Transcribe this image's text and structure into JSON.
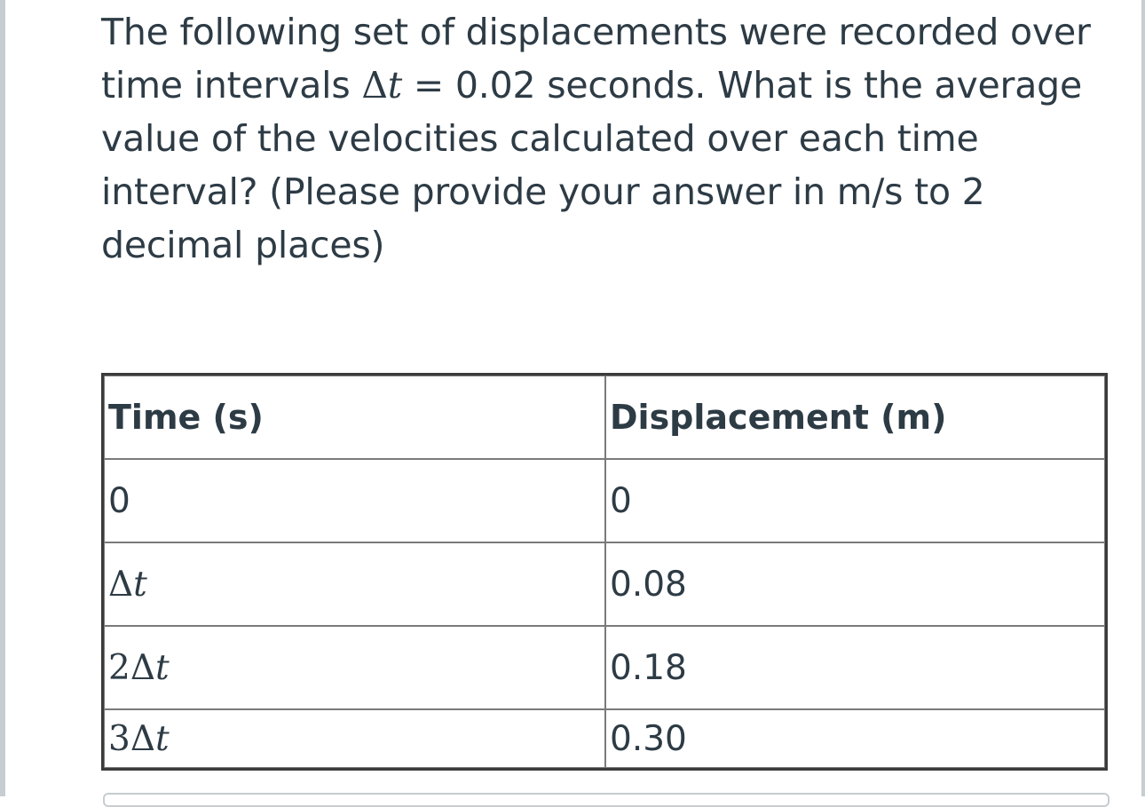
{
  "question": {
    "part1": "The following set of displacements were recorded over time intervals ",
    "math_delta": "Δ",
    "math_t": "t",
    "math_eq": " = ",
    "part2": "0.02 seconds. What is the average value of the velocities calculated over each time interval? (Please provide your answer in m/s to 2 decimal places)"
  },
  "table": {
    "headers": [
      "Time (s)",
      "Displacement (m)"
    ],
    "rows": [
      {
        "time_coeff": "",
        "time_delta": "",
        "time_t": "",
        "time_plain": "0",
        "displacement": "0"
      },
      {
        "time_coeff": "",
        "time_delta": "Δ",
        "time_t": "t",
        "time_plain": "",
        "displacement": "0.08"
      },
      {
        "time_coeff": "2",
        "time_delta": "Δ",
        "time_t": "t",
        "time_plain": "",
        "displacement": "0.18"
      },
      {
        "time_coeff": "3",
        "time_delta": "Δ",
        "time_t": "t",
        "time_plain": "",
        "displacement": "0.30"
      }
    ]
  }
}
